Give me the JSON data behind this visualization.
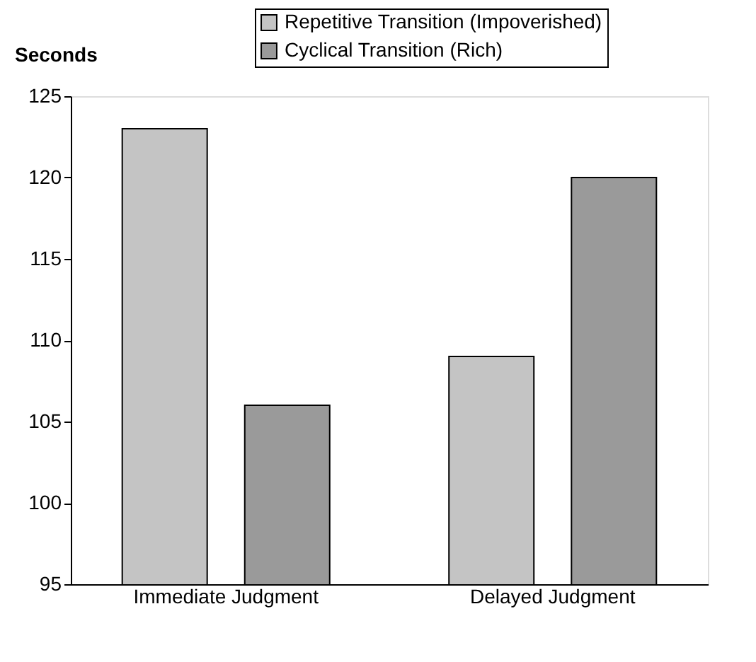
{
  "chart_data": {
    "type": "bar",
    "ylabel": "Seconds",
    "categories": [
      "Immediate Judgment",
      "Delayed Judgment"
    ],
    "series": [
      {
        "name": "Repetitive Transition (Impoverished)",
        "color": "#c4c4c4",
        "values": [
          123,
          109
        ]
      },
      {
        "name": "Cyclical Transition (Rich)",
        "color": "#9a9a9a",
        "values": [
          106,
          120
        ]
      }
    ],
    "ylim": [
      95,
      125
    ],
    "yticks": [
      95,
      100,
      105,
      110,
      115,
      120,
      125
    ],
    "grid": false,
    "legend": "top"
  }
}
